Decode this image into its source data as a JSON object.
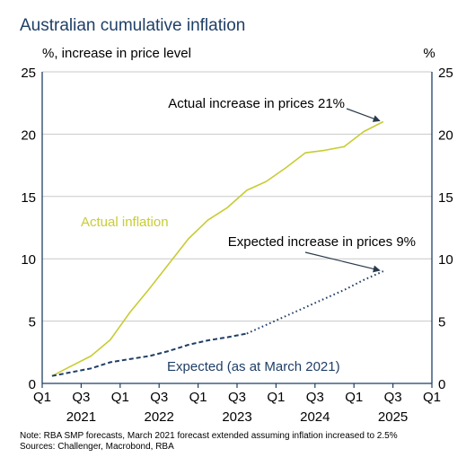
{
  "chart_data": {
    "type": "line",
    "title": "Australian cumulative inflation",
    "ylabel_left": "%, increase in price level",
    "ylabel_right": "%",
    "ylim": [
      0,
      25
    ],
    "yticks": [
      0,
      5,
      10,
      15,
      20,
      25
    ],
    "grid": true,
    "x_range": [
      2021.0,
      2026.0
    ],
    "xtick_labels": [
      {
        "x": 2021.0,
        "label": "Q1"
      },
      {
        "x": 2021.5,
        "label": "Q3"
      },
      {
        "x": 2022.0,
        "label": "Q1"
      },
      {
        "x": 2022.5,
        "label": "Q3"
      },
      {
        "x": 2023.0,
        "label": "Q1"
      },
      {
        "x": 2023.5,
        "label": "Q3"
      },
      {
        "x": 2024.0,
        "label": "Q1"
      },
      {
        "x": 2024.5,
        "label": "Q3"
      },
      {
        "x": 2025.0,
        "label": "Q1"
      },
      {
        "x": 2025.5,
        "label": "Q3"
      },
      {
        "x": 2026.0,
        "label": "Q1"
      }
    ],
    "year_labels": [
      {
        "x": 2021.5,
        "label": "2021"
      },
      {
        "x": 2022.5,
        "label": "2022"
      },
      {
        "x": 2023.5,
        "label": "2023"
      },
      {
        "x": 2024.5,
        "label": "2024"
      },
      {
        "x": 2025.5,
        "label": "2025"
      }
    ],
    "series": [
      {
        "name": "Actual inflation",
        "color": "#c8cc34",
        "style": "solid",
        "x": [
          2021.125,
          2021.375,
          2021.625,
          2021.875,
          2022.125,
          2022.375,
          2022.625,
          2022.875,
          2023.125,
          2023.375,
          2023.625,
          2023.875,
          2024.125,
          2024.375,
          2024.625,
          2024.875,
          2025.125,
          2025.375
        ],
        "y": [
          0.6,
          1.4,
          2.2,
          3.5,
          5.7,
          7.6,
          9.6,
          11.6,
          13.1,
          14.1,
          15.5,
          16.2,
          17.3,
          18.5,
          18.7,
          19.0,
          20.2,
          21.0
        ]
      },
      {
        "name": "Expected (as at March 2021)",
        "color": "#1f3f66",
        "style_segments": [
          {
            "style": "dashed",
            "x": [
              2021.125,
              2021.375,
              2021.625,
              2021.875,
              2022.125,
              2022.375,
              2022.625,
              2022.875,
              2023.125,
              2023.375,
              2023.625
            ],
            "y": [
              0.6,
              0.9,
              1.2,
              1.7,
              1.95,
              2.2,
              2.6,
              3.1,
              3.45,
              3.7,
              4.0
            ]
          },
          {
            "style": "dotted",
            "x": [
              2023.625,
              2023.875,
              2024.125,
              2024.375,
              2024.625,
              2024.875,
              2025.125,
              2025.375
            ],
            "y": [
              4.0,
              4.7,
              5.4,
              6.1,
              6.8,
              7.5,
              8.3,
              9.0
            ]
          }
        ]
      }
    ],
    "annotations": [
      {
        "text": "Actual increase in prices 21%",
        "x": 2025.375,
        "y": 21.0,
        "arrow": true
      },
      {
        "text": "Expected increase in prices 9%",
        "x": 2025.375,
        "y": 9.0,
        "arrow": true
      },
      {
        "text": "Actual inflation",
        "series_label": true
      },
      {
        "text": "Expected (as at March 2021)",
        "series_label": true
      }
    ]
  },
  "notes": {
    "note": "Note: RBA SMP forecasts, March 2021 forecast extended assuming inflation increased to 2.5%",
    "sources": "Sources: Challenger, Macrobond, RBA"
  },
  "colors": {
    "title": "#1f3f66",
    "axis": "#1f3f66",
    "grid": "#c8c8c8",
    "actual": "#c8cc34",
    "expected": "#1f3f66",
    "arrow": "#2a3a4a"
  }
}
